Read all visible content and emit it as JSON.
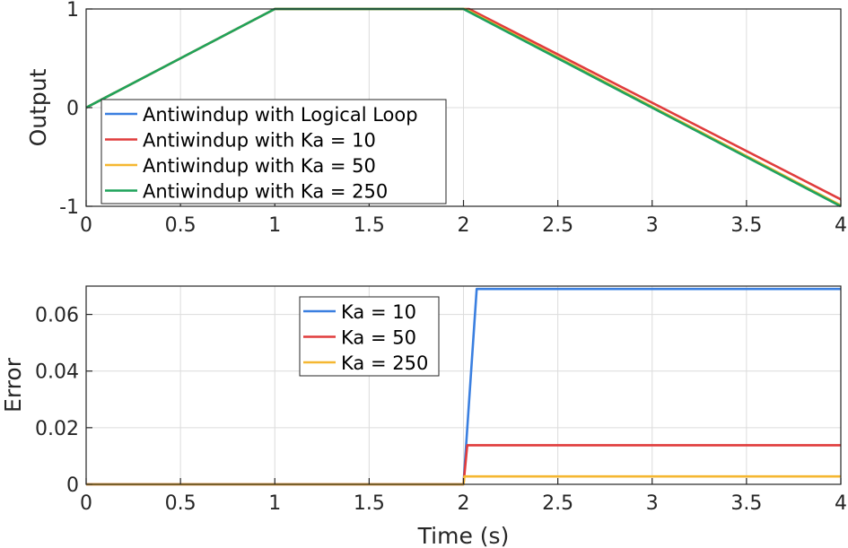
{
  "chart_data": [
    {
      "type": "line",
      "ylabel": "Output",
      "xlabel": "",
      "xlim": [
        0,
        4
      ],
      "ylim": [
        -1,
        1
      ],
      "xticks": [
        0,
        0.5,
        1,
        1.5,
        2,
        2.5,
        3,
        3.5,
        4
      ],
      "xtick_labels": [
        "0",
        "0.5",
        "1",
        "1.5",
        "2",
        "2.5",
        "3",
        "3.5",
        "4"
      ],
      "yticks": [
        -1,
        0,
        1
      ],
      "ytick_labels": [
        "-1",
        "0",
        "1"
      ],
      "grid": true,
      "legend_position": "bottom-left",
      "series": [
        {
          "name": "Antiwindup with Logical Loop",
          "color": "#3a7fe0",
          "x": [
            0,
            1,
            2,
            4
          ],
          "y": [
            0,
            1,
            1,
            -1
          ]
        },
        {
          "name": "Antiwindup with Ka = 10",
          "color": "#e03c3c",
          "x": [
            0,
            1,
            2.03,
            4
          ],
          "y": [
            0,
            1,
            1,
            -0.93
          ]
        },
        {
          "name": "Antiwindup with Ka = 50",
          "color": "#f5b731",
          "x": [
            0,
            1,
            2.01,
            4
          ],
          "y": [
            0,
            1,
            1,
            -0.99
          ]
        },
        {
          "name": "Antiwindup with Ka = 250",
          "color": "#1fa35a",
          "x": [
            0,
            1,
            2,
            4
          ],
          "y": [
            0,
            1,
            1,
            -1
          ]
        }
      ]
    },
    {
      "type": "line",
      "ylabel": "Error",
      "xlabel": "Time (s)",
      "xlim": [
        0,
        4
      ],
      "ylim": [
        0,
        0.07
      ],
      "xticks": [
        0,
        0.5,
        1,
        1.5,
        2,
        2.5,
        3,
        3.5,
        4
      ],
      "xtick_labels": [
        "0",
        "0.5",
        "1",
        "1.5",
        "2",
        "2.5",
        "3",
        "3.5",
        "4"
      ],
      "yticks": [
        0,
        0.02,
        0.04,
        0.06
      ],
      "ytick_labels": [
        "0",
        "0.02",
        "0.04",
        "0.06"
      ],
      "grid": true,
      "legend_position": "top-left",
      "series": [
        {
          "name": "Ka = 10",
          "color": "#3a7fe0",
          "x": [
            0,
            2,
            2.07,
            4
          ],
          "y": [
            0,
            0,
            0.069,
            0.069
          ]
        },
        {
          "name": "Ka = 50",
          "color": "#e03c3c",
          "x": [
            0,
            2,
            2.02,
            4
          ],
          "y": [
            0,
            0,
            0.0138,
            0.0138
          ]
        },
        {
          "name": "Ka = 250",
          "color": "#f5b731",
          "x": [
            0,
            2,
            2.005,
            4
          ],
          "y": [
            0,
            0,
            0.0028,
            0.0028
          ]
        }
      ]
    }
  ]
}
